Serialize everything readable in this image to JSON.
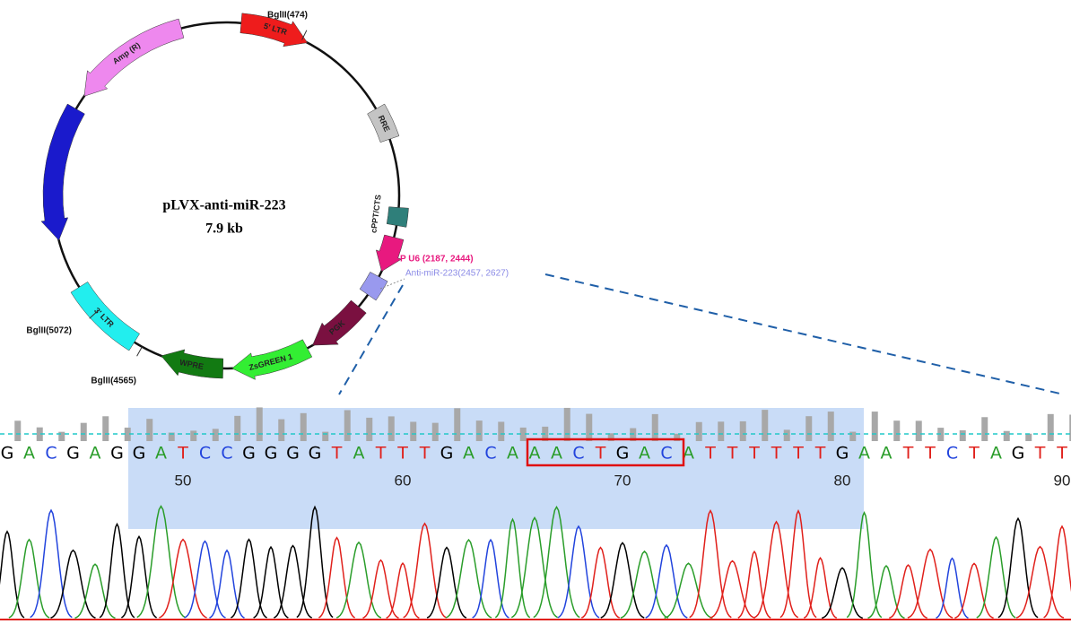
{
  "plasmid": {
    "name": "pLVX-anti-miR-223",
    "size": "7.9 kb",
    "features": [
      {
        "label": "5' LTR"
      },
      {
        "label": "RRE"
      },
      {
        "label": "cPPT/CTS"
      },
      {
        "label": "PGK"
      },
      {
        "label": "ZsGREEN 1"
      },
      {
        "label": "WPRE"
      },
      {
        "label": "3' LTR"
      },
      {
        "label": "Amp (R)"
      }
    ],
    "sites": [
      "BglII(474)",
      "BglII(4565)",
      "BglII(5072)"
    ],
    "annotations": [
      "P U6 (2187, 2444)",
      "Anti-miR-223(2457, 2627)"
    ]
  },
  "trace": {
    "bases": [
      "G",
      "A",
      "C",
      "G",
      "A",
      "G",
      "G",
      "A",
      "T",
      "C",
      "C",
      "G",
      "G",
      "G",
      "G",
      "T",
      "A",
      "T",
      "T",
      "T",
      "G",
      "A",
      "C",
      "A",
      "A",
      "A",
      "C",
      "T",
      "G",
      "A",
      "C",
      "A",
      "T",
      "T",
      "T",
      "T",
      "T",
      "T",
      "G",
      "A",
      "A",
      "T",
      "T",
      "C",
      "T",
      "A",
      "G",
      "T",
      "T"
    ],
    "positions": [
      50,
      60,
      70,
      80,
      90
    ]
  }
}
